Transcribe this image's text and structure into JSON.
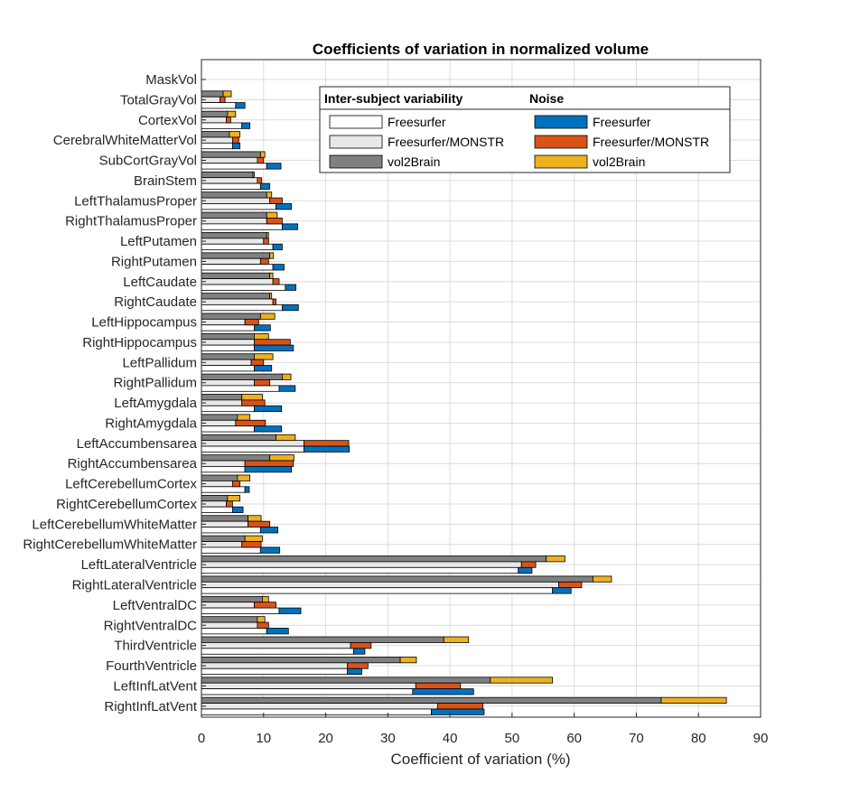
{
  "chart_data": {
    "type": "bar",
    "orientation": "horizontal",
    "title": "Coefficients of variation in normalized volume",
    "xlabel": "Coefficient of variation (%)",
    "ylabel": "",
    "xlim": [
      0,
      90
    ],
    "xticks": [
      0,
      10,
      20,
      30,
      40,
      50,
      60,
      70,
      80,
      90
    ],
    "grid": true,
    "legend_placement": "top-right",
    "legend_groups": [
      {
        "title": "Inter-subject variability",
        "entries": [
          "Freesurfer",
          "Freesurfer/MONSTR",
          "vol2Brain"
        ]
      },
      {
        "title": "Noise",
        "entries": [
          "Freesurfer",
          "Freesurfer/MONSTR",
          "vol2Brain"
        ]
      }
    ],
    "categories": [
      "MaskVol",
      "TotalGrayVol",
      "CortexVol",
      "CerebralWhiteMatterVol",
      "SubCortGrayVol",
      "BrainStem",
      "LeftThalamusProper",
      "RightThalamusProper",
      "LeftPutamen",
      "RightPutamen",
      "LeftCaudate",
      "RightCaudate",
      "LeftHippocampus",
      "RightHippocampus",
      "LeftPallidum",
      "RightPallidum",
      "LeftAmygdala",
      "RightAmygdala",
      "LeftAccumbensarea",
      "RightAccumbensarea",
      "LeftCerebellumCortex",
      "RightCerebellumCortex",
      "LeftCerebellumWhiteMatter",
      "RightCerebellumWhiteMatter",
      "LeftLateralVentricle",
      "RightLateralVentricle",
      "LeftVentralDC",
      "RightVentralDC",
      "ThirdVentricle",
      "FourthVentricle",
      "LeftInfLatVent",
      "RightInfLatVent"
    ],
    "series": [
      {
        "name": "Inter-subject variability: vol2Brain",
        "group": "inter",
        "color": "#808080",
        "values": [
          0,
          3.5,
          4.2,
          4.5,
          9.5,
          8.3,
          10.5,
          10.5,
          10.5,
          11,
          11,
          11,
          9.5,
          8.5,
          8.5,
          13,
          6.5,
          5.8,
          12,
          11,
          5.8,
          4.2,
          7.5,
          7,
          55.5,
          63,
          9.8,
          9,
          39,
          32,
          46.5,
          74
        ]
      },
      {
        "name": "Inter-subject variability: Freesurfer/MONSTR",
        "group": "inter",
        "color": "#e8e8e8",
        "values": [
          0,
          3,
          4,
          5,
          9,
          9,
          11,
          10.5,
          10,
          9.5,
          11.5,
          11.5,
          7,
          8.5,
          8,
          8.5,
          6.5,
          5.5,
          16.5,
          7,
          5,
          4,
          7.5,
          6.5,
          51.5,
          57.5,
          8.5,
          9,
          24,
          23.5,
          34.5,
          38
        ]
      },
      {
        "name": "Inter-subject variability: Freesurfer",
        "group": "inter",
        "color": "#ffffff",
        "values": [
          0,
          5.5,
          6.5,
          5,
          10.5,
          9.5,
          12,
          13,
          11.5,
          11.5,
          13.5,
          13,
          8.5,
          8.5,
          8.5,
          12.5,
          8.5,
          8.5,
          16.5,
          7,
          7,
          5,
          9.5,
          9.5,
          51,
          56.5,
          12.5,
          10.5,
          24.5,
          23.5,
          34,
          37
        ]
      },
      {
        "name": "Noise: vol2Brain",
        "group": "noise",
        "color": "#edb120",
        "values": [
          0,
          4.8,
          5.5,
          6.2,
          10.2,
          8.5,
          11.3,
          12.2,
          10.8,
          11.6,
          11.5,
          11.3,
          11.8,
          10.8,
          11.5,
          14.4,
          9.8,
          7.8,
          15.1,
          14.9,
          7.8,
          6.2,
          9.6,
          9.8,
          58.5,
          66,
          10.8,
          10.2,
          43,
          34.6,
          56.5,
          84.5
        ]
      },
      {
        "name": "Noise: Freesurfer/MONSTR",
        "group": "noise",
        "color": "#d95319",
        "values": [
          0,
          3.8,
          4.7,
          6,
          10,
          9.7,
          13,
          13,
          10.8,
          10.8,
          12.5,
          12,
          9.2,
          14.3,
          10,
          11,
          10.2,
          10.3,
          23.7,
          14.8,
          6.2,
          5,
          11,
          9.6,
          53.8,
          61.2,
          12,
          10.8,
          27.3,
          26.8,
          41.7,
          45.3
        ]
      },
      {
        "name": "Noise: Freesurfer",
        "group": "noise",
        "color": "#0072bd",
        "values": [
          0,
          7,
          7.8,
          6.2,
          12.8,
          11,
          14.5,
          15.5,
          13,
          13.3,
          15.2,
          15.6,
          11.1,
          14.8,
          11.3,
          15.1,
          12.9,
          12.9,
          23.8,
          14.5,
          7.7,
          6.7,
          12.3,
          12.6,
          53.2,
          59.5,
          16,
          14,
          26.3,
          25.8,
          43.8,
          45.5
        ]
      }
    ]
  }
}
